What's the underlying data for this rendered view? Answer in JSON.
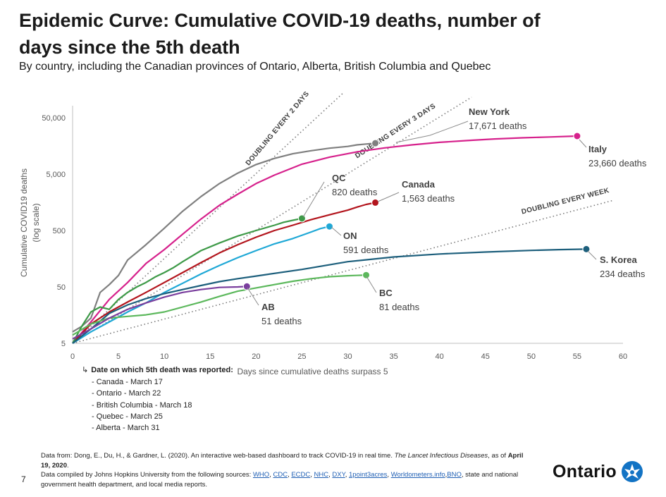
{
  "title": "Epidemic Curve: Cumulative COVID-19 deaths, number of days since the 5th death",
  "subtitle": "By country, including the Canadian provinces of Ontario, Alberta, British Columbia and Quebec",
  "chart_data": {
    "type": "line",
    "xlabel": "Days since cumulative deaths surpass 5",
    "ylabel": "Cumulative COVID19 deaths\n(log scale)",
    "xlim": [
      0,
      60
    ],
    "ylim": [
      5,
      60000
    ],
    "yscale": "log",
    "x_ticks": [
      0,
      5,
      10,
      15,
      20,
      25,
      30,
      35,
      40,
      45,
      50,
      55,
      60
    ],
    "y_ticks": [
      {
        "value": 5,
        "label": "5"
      },
      {
        "value": 50,
        "label": "50"
      },
      {
        "value": 500,
        "label": "500"
      },
      {
        "value": 5000,
        "label": "5,000"
      },
      {
        "value": 50000,
        "label": "50,000"
      }
    ],
    "grid": false,
    "series": [
      {
        "name": "New York",
        "color": "#7f7f7f",
        "endpoint": "17,671 deaths",
        "x": [
          0,
          1,
          2,
          3,
          4,
          5,
          6,
          8,
          10,
          12,
          14,
          16,
          18,
          20,
          22,
          24,
          26,
          28,
          30,
          31,
          32,
          33
        ],
        "y": [
          8,
          10,
          14,
          40,
          55,
          80,
          150,
          280,
          550,
          1100,
          2000,
          3400,
          5200,
          7400,
          9500,
          11500,
          13000,
          14400,
          15500,
          16500,
          17100,
          17671
        ]
      },
      {
        "name": "Italy",
        "color": "#d6218c",
        "endpoint": "23,660 deaths",
        "x": [
          0,
          2,
          4,
          6,
          8,
          10,
          12,
          14,
          16,
          18,
          20,
          22,
          25,
          28,
          31,
          34,
          37,
          40,
          43,
          46,
          49,
          52,
          55
        ],
        "y": [
          5,
          12,
          30,
          60,
          130,
          230,
          430,
          800,
          1400,
          2200,
          3400,
          4800,
          7500,
          10000,
          12400,
          14600,
          16500,
          18300,
          19700,
          21000,
          22000,
          22800,
          23660
        ]
      },
      {
        "name": "Canada",
        "color": "#b3151d",
        "endpoint": "1,563 deaths",
        "x": [
          0,
          2,
          4,
          6,
          8,
          10,
          12,
          14,
          16,
          18,
          20,
          22,
          24,
          26,
          28,
          30,
          31,
          32,
          33
        ],
        "y": [
          5,
          11,
          18,
          27,
          40,
          60,
          90,
          135,
          200,
          280,
          380,
          500,
          620,
          780,
          950,
          1150,
          1300,
          1450,
          1563
        ]
      },
      {
        "name": "QC",
        "color": "#3e9a48",
        "endpoint": "820 deaths",
        "x": [
          0,
          1,
          2,
          3,
          4,
          5,
          6,
          7,
          8,
          9,
          10,
          11,
          12,
          14,
          16,
          18,
          20,
          22,
          23,
          24,
          25
        ],
        "y": [
          5,
          10,
          18,
          22,
          20,
          30,
          40,
          50,
          60,
          75,
          90,
          110,
          140,
          220,
          300,
          400,
          500,
          620,
          700,
          760,
          820
        ]
      },
      {
        "name": "ON",
        "color": "#1fa8d6",
        "endpoint": "591 deaths",
        "x": [
          0,
          2,
          4,
          6,
          8,
          10,
          12,
          14,
          16,
          18,
          20,
          22,
          24,
          26,
          27,
          28
        ],
        "y": [
          5,
          8,
          12,
          18,
          26,
          40,
          58,
          85,
          120,
          165,
          220,
          290,
          360,
          470,
          540,
          591
        ]
      },
      {
        "name": "S. Korea",
        "color": "#1d5f7c",
        "endpoint": "234 deaths",
        "x": [
          0,
          2,
          4,
          6,
          8,
          10,
          12,
          14,
          16,
          18,
          20,
          25,
          30,
          35,
          40,
          45,
          50,
          53,
          56
        ],
        "y": [
          5,
          9,
          17,
          24,
          31,
          38,
          45,
          53,
          62,
          70,
          78,
          102,
          140,
          170,
          192,
          208,
          222,
          229,
          234
        ]
      },
      {
        "name": "BC",
        "color": "#5cb85c",
        "endpoint": "81 deaths",
        "x": [
          0,
          2,
          4,
          6,
          8,
          10,
          12,
          14,
          16,
          18,
          20,
          22,
          24,
          26,
          28,
          30,
          32
        ],
        "y": [
          7,
          11,
          14,
          15,
          16,
          18,
          22,
          27,
          34,
          42,
          48,
          55,
          63,
          70,
          76,
          79,
          81
        ]
      },
      {
        "name": "AB",
        "color": "#7a3e9d",
        "endpoint": "51 deaths",
        "x": [
          0,
          2,
          4,
          6,
          8,
          10,
          12,
          14,
          16,
          18,
          19
        ],
        "y": [
          6,
          9,
          14,
          20,
          26,
          33,
          40,
          45,
          49,
          50,
          51
        ]
      }
    ],
    "reference_lines": [
      {
        "label": "DOUBLING EVERY 2 DAYS",
        "doubling_days": 2
      },
      {
        "label": "DOUBLING EVERY 3 DAYS",
        "doubling_days": 3
      },
      {
        "label": "DOUBLING EVERY WEEK",
        "doubling_days": 7
      }
    ]
  },
  "notes_heading": "Date on which 5th death was reported:",
  "notes": [
    "- Canada - March 17",
    "- Ontario - March 22",
    "- British Columbia - March 18",
    "- Quebec - March 25",
    "- Alberta - March 31"
  ],
  "source": {
    "line1_start": "Data from: Dong, E., Du, H., & Gardner, L. (2020). An interactive web-based dashboard to track COVID-19 in real time.",
    "journal": "The Lancet Infectious Diseases",
    "asof_prefix": ", as of ",
    "asof_date": "April 19, 2020",
    "asof_suffix": ".",
    "line2_start": "Data compiled by Johns Hopkins University from the following sources:",
    "links": [
      "WHO",
      "CDC",
      "ECDC",
      "NHC",
      "DXY",
      "1point3acres",
      "Worldometers.info",
      "BNO"
    ],
    "line2_end": "state and national government health department, and local media reports."
  },
  "page_number": "7",
  "logo_text": "Ontario"
}
